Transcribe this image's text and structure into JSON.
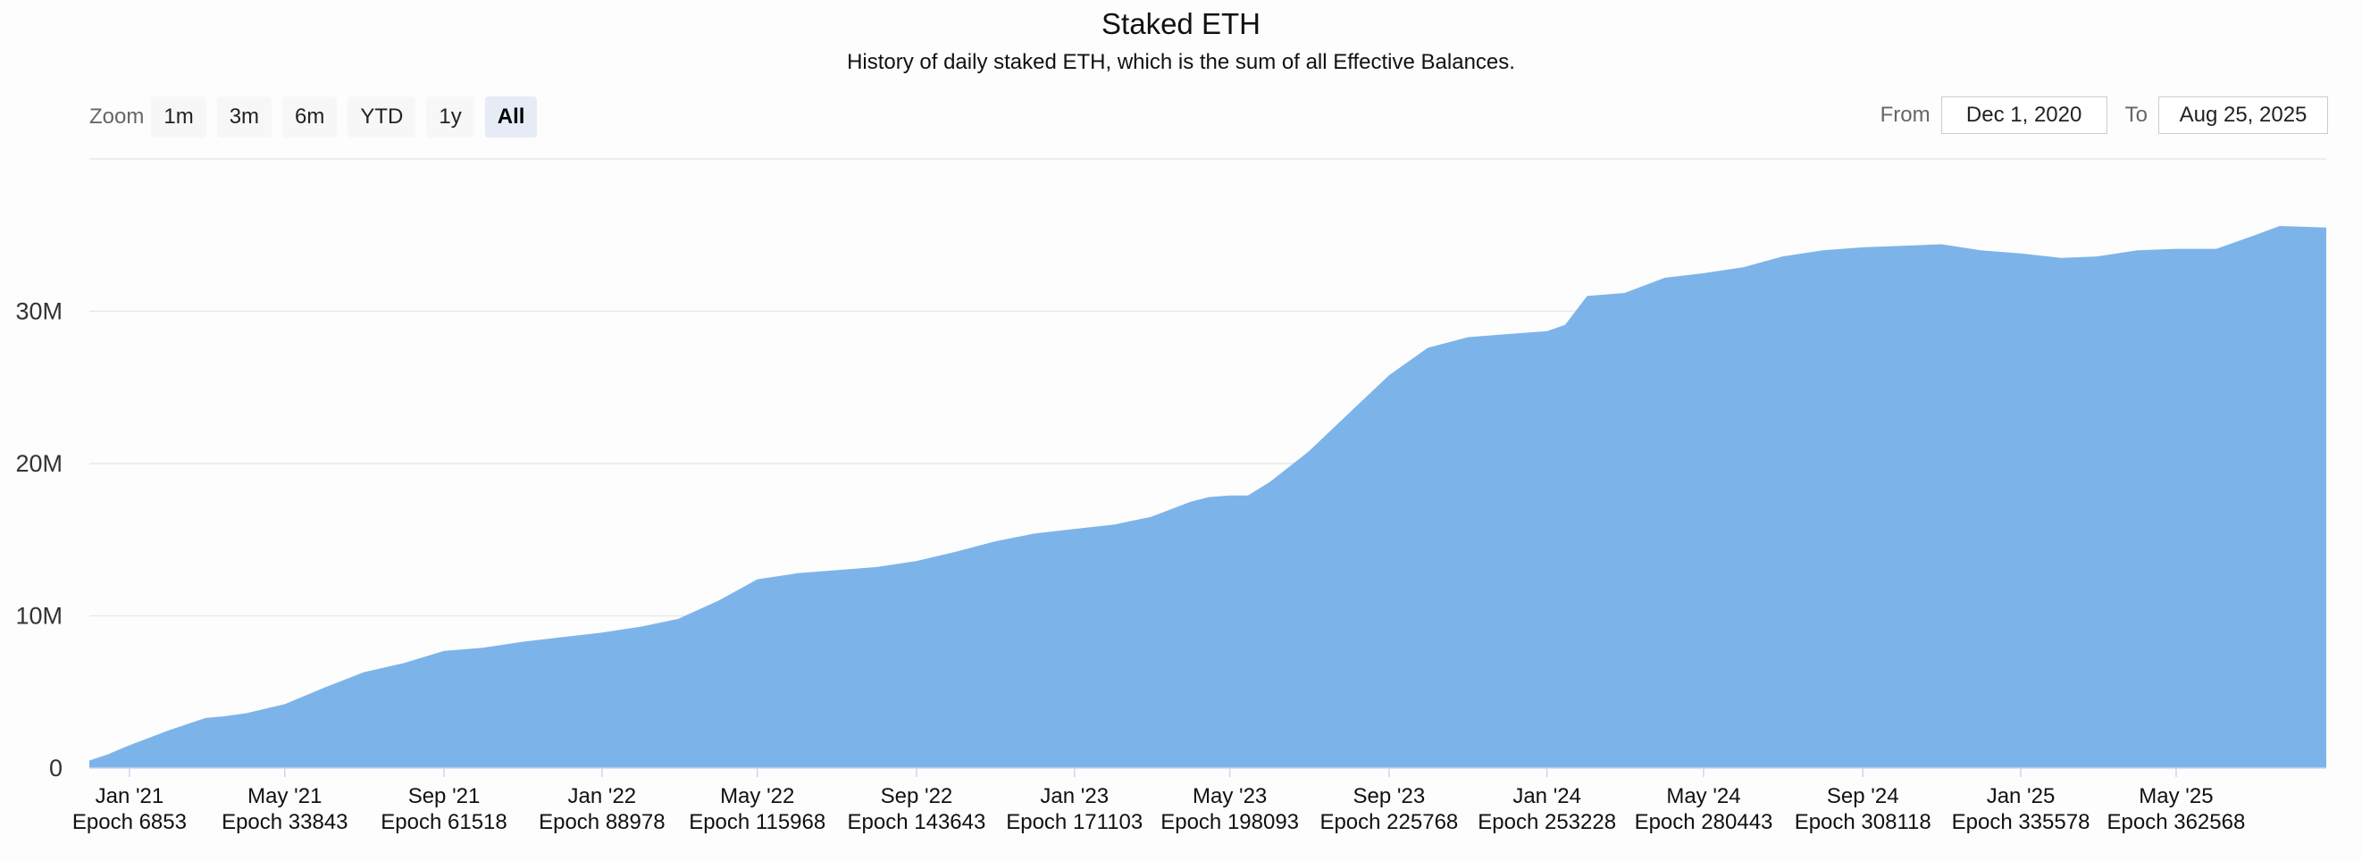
{
  "header": {
    "title": "Staked ETH",
    "subtitle": "History of daily staked ETH, which is the sum of all Effective Balances."
  },
  "zoom": {
    "label": "Zoom",
    "buttons": [
      "1m",
      "3m",
      "6m",
      "YTD",
      "1y",
      "All"
    ],
    "active": "All"
  },
  "range": {
    "from_label": "From",
    "from_value": "Dec 1, 2020",
    "to_label": "To",
    "to_value": "Aug 25, 2025"
  },
  "colors": {
    "area": "#7cb4ea",
    "grid": "#e8e8e8",
    "text": "#333333"
  },
  "chart_data": {
    "type": "area",
    "title": "Staked ETH",
    "subtitle": "History of daily staked ETH, which is the sum of all Effective Balances.",
    "xlabel": "",
    "ylabel": "",
    "x_range": [
      "2020-12-01",
      "2025-08-25"
    ],
    "ylim": [
      0,
      40000000
    ],
    "grid": true,
    "y_ticks": [
      {
        "value": 0,
        "label": "0"
      },
      {
        "value": 10000000,
        "label": "10M"
      },
      {
        "value": 20000000,
        "label": "20M"
      },
      {
        "value": 30000000,
        "label": "30M"
      }
    ],
    "x_ticks": [
      {
        "date": "2021-01-01",
        "label": "Jan '21",
        "epoch": "Epoch 6853"
      },
      {
        "date": "2021-05-01",
        "label": "May '21",
        "epoch": "Epoch 33843"
      },
      {
        "date": "2021-09-01",
        "label": "Sep '21",
        "epoch": "Epoch 61518"
      },
      {
        "date": "2022-01-01",
        "label": "Jan '22",
        "epoch": "Epoch 88978"
      },
      {
        "date": "2022-05-01",
        "label": "May '22",
        "epoch": "Epoch 115968"
      },
      {
        "date": "2022-09-01",
        "label": "Sep '22",
        "epoch": "Epoch 143643"
      },
      {
        "date": "2023-01-01",
        "label": "Jan '23",
        "epoch": "Epoch 171103"
      },
      {
        "date": "2023-05-01",
        "label": "May '23",
        "epoch": "Epoch 198093"
      },
      {
        "date": "2023-09-01",
        "label": "Sep '23",
        "epoch": "Epoch 225768"
      },
      {
        "date": "2024-01-01",
        "label": "Jan '24",
        "epoch": "Epoch 253228"
      },
      {
        "date": "2024-05-01",
        "label": "May '24",
        "epoch": "Epoch 280443"
      },
      {
        "date": "2024-09-01",
        "label": "Sep '24",
        "epoch": "Epoch 308118"
      },
      {
        "date": "2025-01-01",
        "label": "Jan '25",
        "epoch": "Epoch 335578"
      },
      {
        "date": "2025-05-01",
        "label": "May '25",
        "epoch": "Epoch 362568"
      }
    ],
    "x": [
      "2020-12-01",
      "2020-12-15",
      "2021-01-01",
      "2021-02-01",
      "2021-03-01",
      "2021-03-15",
      "2021-04-01",
      "2021-05-01",
      "2021-06-01",
      "2021-07-01",
      "2021-08-01",
      "2021-09-01",
      "2021-10-01",
      "2021-11-01",
      "2021-12-01",
      "2022-01-01",
      "2022-02-01",
      "2022-03-01",
      "2022-04-01",
      "2022-05-01",
      "2022-06-01",
      "2022-07-01",
      "2022-08-01",
      "2022-09-01",
      "2022-10-01",
      "2022-11-01",
      "2022-12-01",
      "2023-01-01",
      "2023-02-01",
      "2023-03-01",
      "2023-04-01",
      "2023-04-15",
      "2023-05-01",
      "2023-05-15",
      "2023-06-01",
      "2023-07-01",
      "2023-08-01",
      "2023-09-01",
      "2023-10-01",
      "2023-11-01",
      "2023-12-01",
      "2024-01-01",
      "2024-01-15",
      "2024-02-01",
      "2024-03-01",
      "2024-04-01",
      "2024-05-01",
      "2024-06-01",
      "2024-07-01",
      "2024-08-01",
      "2024-09-01",
      "2024-10-01",
      "2024-11-01",
      "2024-12-01",
      "2025-01-01",
      "2025-02-01",
      "2025-03-01",
      "2025-04-01",
      "2025-05-01",
      "2025-06-01",
      "2025-07-01",
      "2025-07-20",
      "2025-08-25"
    ],
    "series": [
      {
        "values": [
          500000,
          900000,
          1500000,
          2500000,
          3300000,
          3400000,
          3600000,
          4200000,
          5300000,
          6300000,
          6900000,
          7700000,
          7900000,
          8300000,
          8600000,
          8900000,
          9300000,
          9800000,
          11000000,
          12400000,
          12800000,
          13000000,
          13200000,
          13600000,
          14200000,
          14900000,
          15400000,
          15700000,
          16000000,
          16500000,
          17500000,
          17800000,
          17900000,
          17900000,
          18800000,
          20800000,
          23300000,
          25800000,
          27600000,
          28300000,
          28500000,
          28700000,
          29100000,
          31000000,
          31200000,
          32200000,
          32500000,
          32900000,
          33600000,
          34000000,
          34200000,
          34300000,
          34400000,
          34000000,
          33800000,
          33500000,
          33600000,
          34000000,
          34100000,
          34100000,
          35000000,
          35600000,
          35500000
        ]
      }
    ]
  }
}
